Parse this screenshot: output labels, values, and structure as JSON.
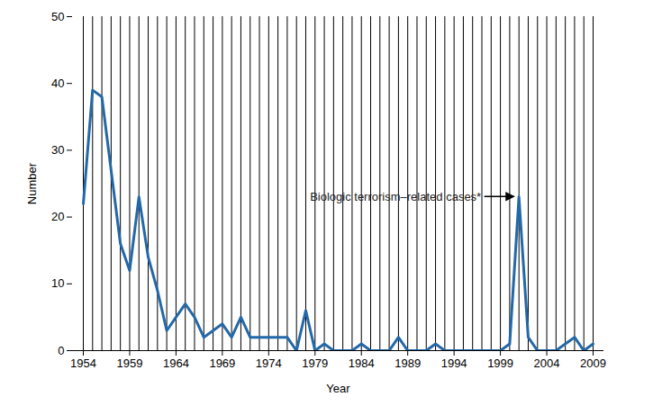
{
  "chart_data": {
    "type": "line",
    "x_label": "Year",
    "y_label": "Number",
    "x": [
      1954,
      1955,
      1956,
      1957,
      1958,
      1959,
      1960,
      1961,
      1962,
      1963,
      1964,
      1965,
      1966,
      1967,
      1968,
      1969,
      1970,
      1971,
      1972,
      1973,
      1974,
      1975,
      1976,
      1977,
      1978,
      1979,
      1980,
      1981,
      1982,
      1983,
      1984,
      1985,
      1986,
      1987,
      1988,
      1989,
      1990,
      1991,
      1992,
      1993,
      1994,
      1995,
      1996,
      1997,
      1998,
      1999,
      2000,
      2001,
      2002,
      2003,
      2004,
      2005,
      2006,
      2007,
      2008,
      2009
    ],
    "values": [
      22,
      39,
      38,
      27,
      16,
      12,
      23,
      14,
      9,
      3,
      5,
      7,
      5,
      2,
      3,
      4,
      2,
      5,
      2,
      2,
      2,
      2,
      2,
      0,
      6,
      0,
      1,
      0,
      0,
      0,
      1,
      0,
      0,
      0,
      2,
      0,
      0,
      0,
      1,
      0,
      0,
      0,
      0,
      0,
      0,
      0,
      1,
      23,
      2,
      0,
      0,
      0,
      1,
      2,
      0,
      1
    ],
    "color": "#2368a8",
    "xlim": [
      1954,
      2009
    ],
    "xticks": [
      1954,
      1959,
      1964,
      1969,
      1974,
      1979,
      1984,
      1989,
      1994,
      1999,
      2004,
      2009
    ],
    "ylim": [
      0,
      50
    ],
    "yticks": [
      0,
      10,
      20,
      30,
      40,
      50
    ],
    "annotations": [
      {
        "text": "Biologic terrorism–related cases*",
        "x": 2001
      }
    ]
  }
}
